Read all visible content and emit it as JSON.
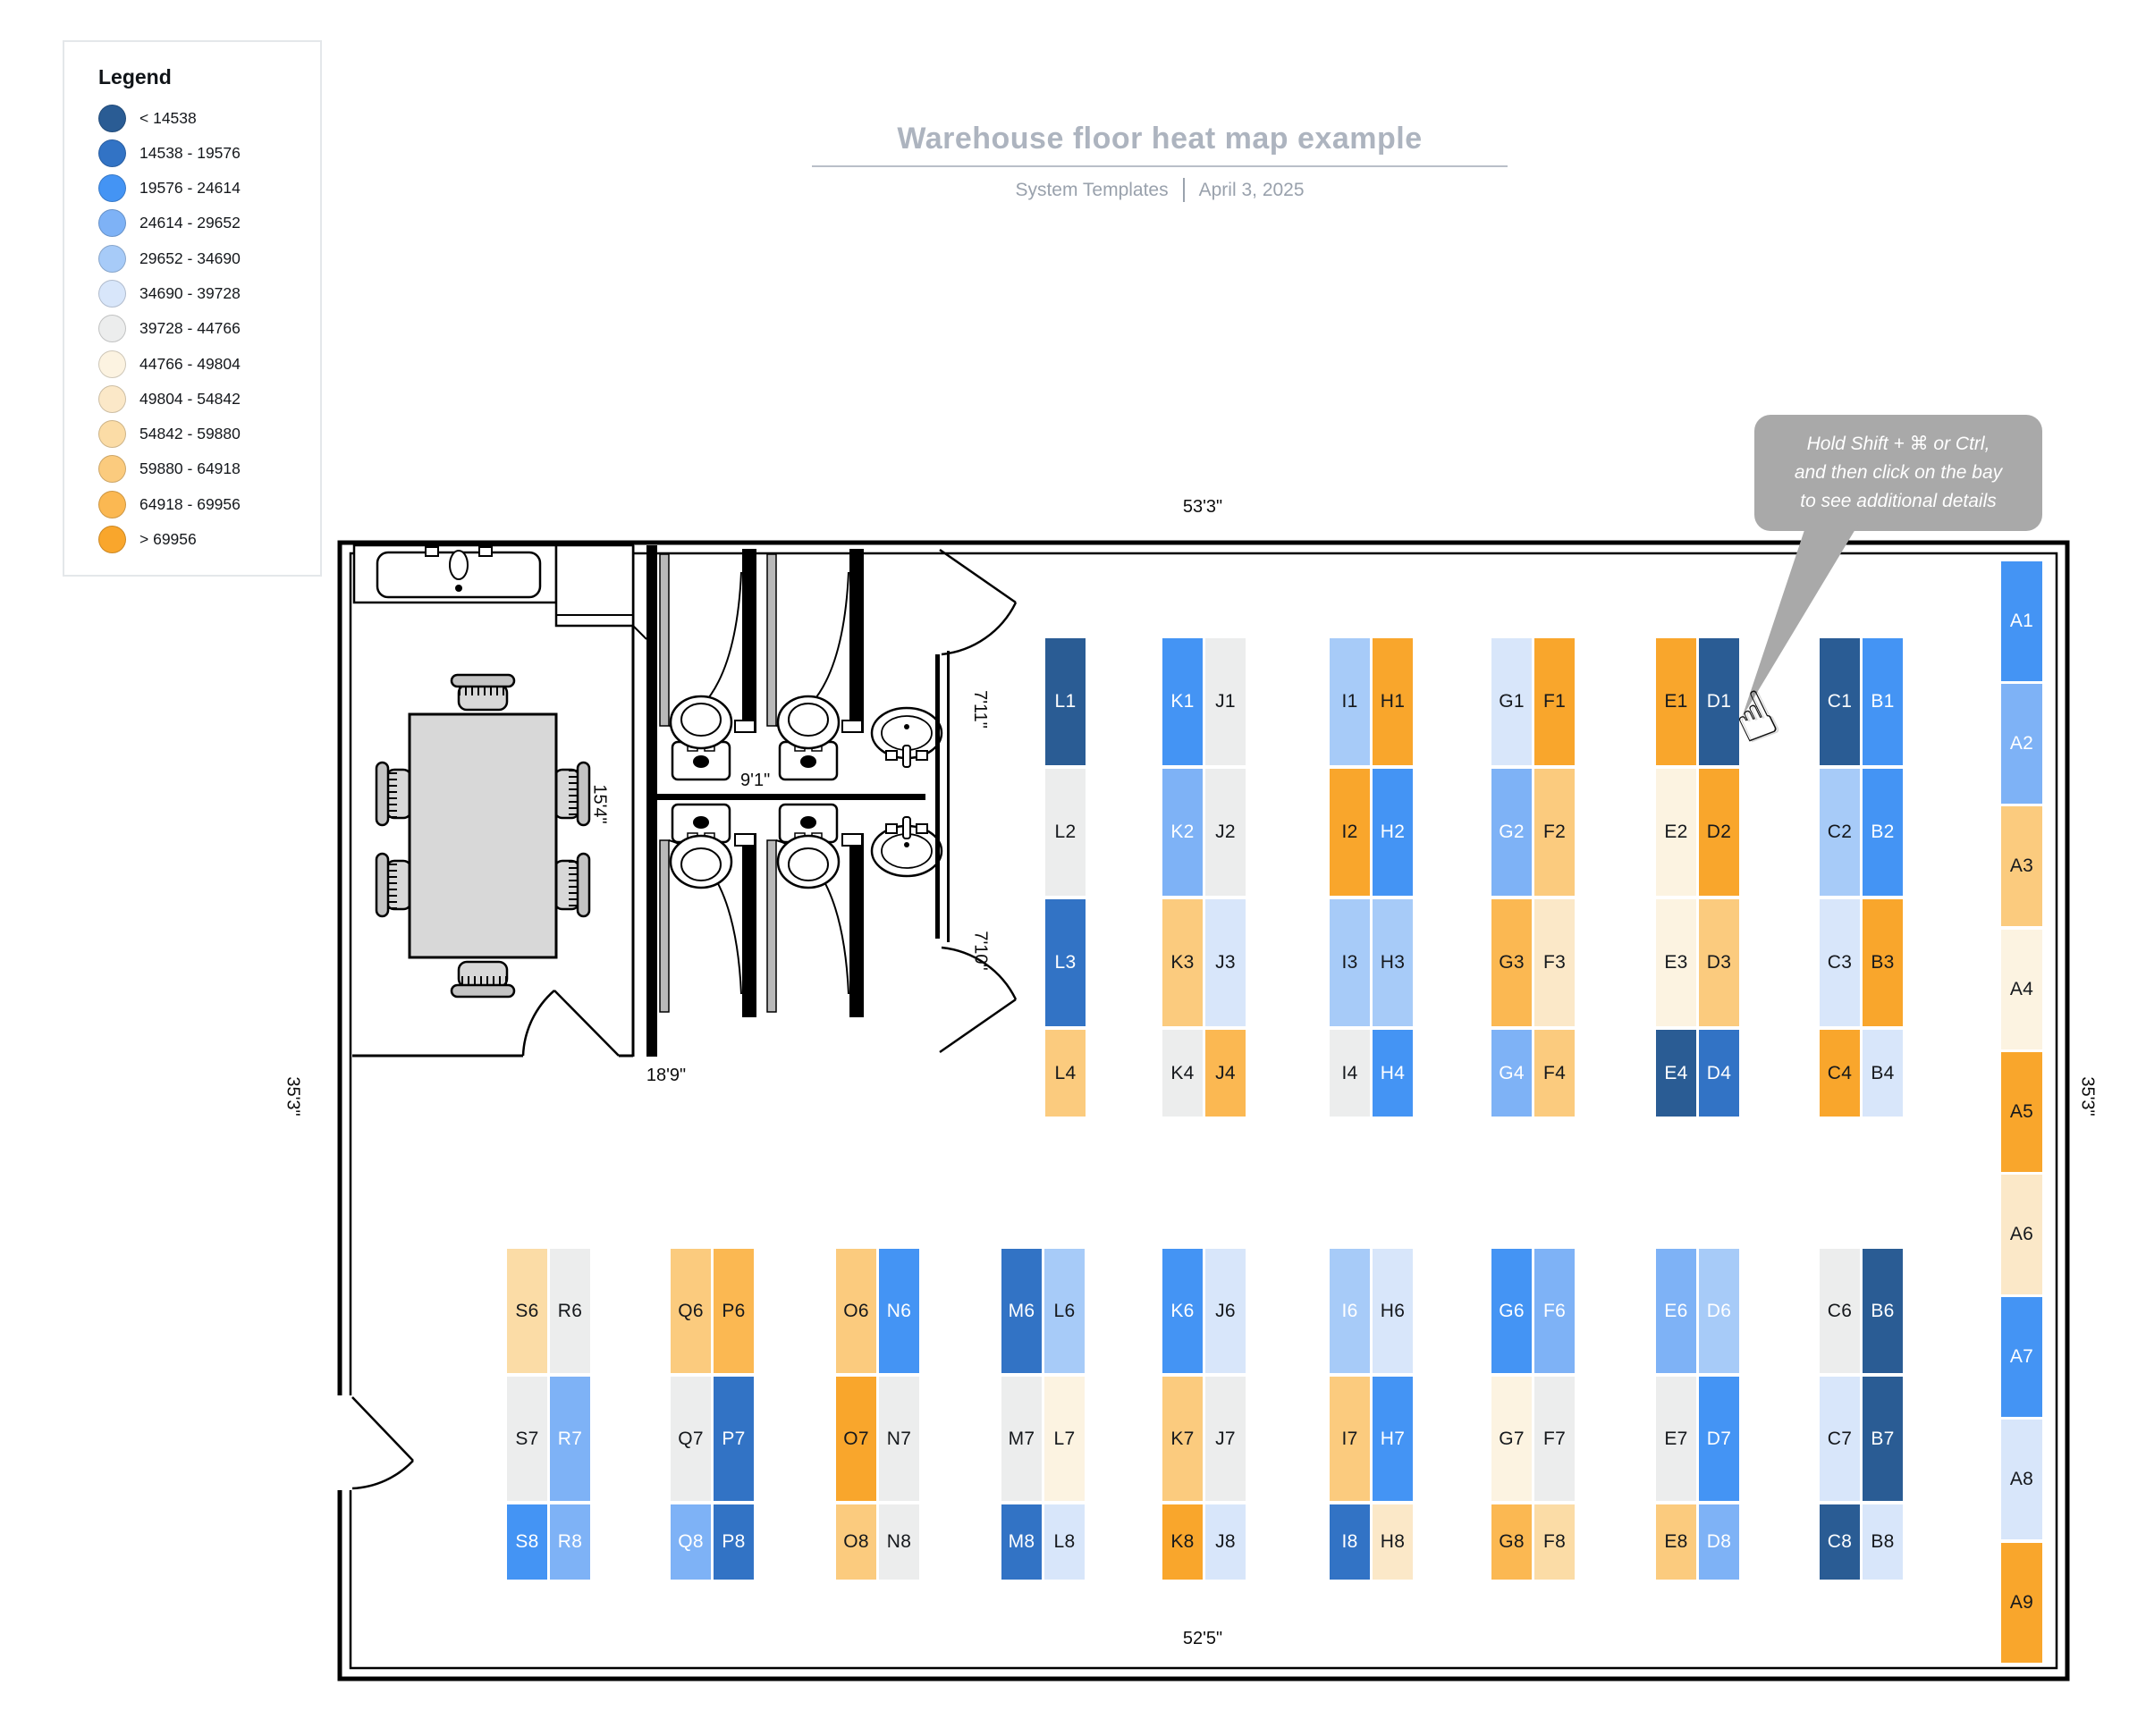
{
  "header": {
    "title": "Warehouse floor heat map example",
    "subtitle_left": "System Templates",
    "subtitle_right": "April 3, 2025"
  },
  "legend": {
    "title": "Legend",
    "items": [
      {
        "label": "< 14538",
        "color": "#2A5C94"
      },
      {
        "label": "14538 - 19576",
        "color": "#3273C5"
      },
      {
        "label": "19576 - 24614",
        "color": "#4494F4"
      },
      {
        "label": "24614 - 29652",
        "color": "#7EB2F6"
      },
      {
        "label": "29652 - 34690",
        "color": "#A7CBF8"
      },
      {
        "label": "34690 - 39728",
        "color": "#D8E6FA"
      },
      {
        "label": "39728 - 44766",
        "color": "#ECEDED"
      },
      {
        "label": "44766 - 49804",
        "color": "#FCF3E1"
      },
      {
        "label": "49804 - 54842",
        "color": "#FBE8C8"
      },
      {
        "label": "54842 - 59880",
        "color": "#FBDCA6"
      },
      {
        "label": "59880 - 64918",
        "color": "#FBCB7E"
      },
      {
        "label": "64918 - 69956",
        "color": "#FBB852"
      },
      {
        "label": "> 69956",
        "color": "#F9A62C"
      }
    ]
  },
  "tooltip": {
    "lines": [
      "Hold Shift + ⌘ or Ctrl,",
      "and then click on the bay",
      "to see additional details"
    ]
  },
  "icons": {
    "hand_cursor": "☝"
  },
  "dimensions": {
    "top": "53'3\"",
    "bottom": "52'5\"",
    "left": "35'3\"",
    "right": "35'3\"",
    "break_room_width": "18'9\"",
    "break_room_depth": "15'4\"",
    "bath_top": "7'11\"",
    "bath_middle": "9'1\"",
    "bath_bottom": "7'10\""
  },
  "bays": {
    "top_racks": [
      {
        "cols": [
          [
            {
              "label": "L1",
              "bin": 0
            },
            {
              "label": "L2",
              "bin": 6
            },
            {
              "label": "L3",
              "bin": 1
            },
            {
              "label": "L4",
              "bin": 10
            }
          ]
        ]
      },
      {
        "cols": [
          [
            {
              "label": "K1",
              "bin": 2
            },
            {
              "label": "K2",
              "bin": 3
            },
            {
              "label": "K3",
              "bin": 10
            },
            {
              "label": "K4",
              "bin": 6
            }
          ],
          [
            {
              "label": "J1",
              "bin": 6
            },
            {
              "label": "J2",
              "bin": 6
            },
            {
              "label": "J3",
              "bin": 5
            },
            {
              "label": "J4",
              "bin": 11
            }
          ]
        ]
      },
      {
        "cols": [
          [
            {
              "label": "I1",
              "bin": 4
            },
            {
              "label": "I2",
              "bin": 12
            },
            {
              "label": "I3",
              "bin": 4
            },
            {
              "label": "I4",
              "bin": 6
            }
          ],
          [
            {
              "label": "H1",
              "bin": 12
            },
            {
              "label": "H2",
              "bin": 2
            },
            {
              "label": "H3",
              "bin": 4
            },
            {
              "label": "H4",
              "bin": 2
            }
          ]
        ]
      },
      {
        "cols": [
          [
            {
              "label": "G1",
              "bin": 5
            },
            {
              "label": "G2",
              "bin": 3
            },
            {
              "label": "G3",
              "bin": 11
            },
            {
              "label": "G4",
              "bin": 3
            }
          ],
          [
            {
              "label": "F1",
              "bin": 12
            },
            {
              "label": "F2",
              "bin": 10
            },
            {
              "label": "F3",
              "bin": 8
            },
            {
              "label": "F4",
              "bin": 10
            }
          ]
        ]
      },
      {
        "cols": [
          [
            {
              "label": "E1",
              "bin": 12
            },
            {
              "label": "E2",
              "bin": 7
            },
            {
              "label": "E3",
              "bin": 7
            },
            {
              "label": "E4",
              "bin": 0
            }
          ],
          [
            {
              "label": "D1",
              "bin": 0
            },
            {
              "label": "D2",
              "bin": 12
            },
            {
              "label": "D3",
              "bin": 10
            },
            {
              "label": "D4",
              "bin": 1
            }
          ]
        ]
      },
      {
        "cols": [
          [
            {
              "label": "C1",
              "bin": 0
            },
            {
              "label": "C2",
              "bin": 4
            },
            {
              "label": "C3",
              "bin": 5
            },
            {
              "label": "C4",
              "bin": 12
            }
          ],
          [
            {
              "label": "B1",
              "bin": 2
            },
            {
              "label": "B2",
              "bin": 2
            },
            {
              "label": "B3",
              "bin": 12
            },
            {
              "label": "B4",
              "bin": 5
            }
          ]
        ]
      }
    ],
    "bottom_racks": [
      {
        "cols": [
          [
            {
              "label": "S6",
              "bin": 9
            },
            {
              "label": "S7",
              "bin": 6
            },
            {
              "label": "S8",
              "bin": 2
            }
          ],
          [
            {
              "label": "R6",
              "bin": 6
            },
            {
              "label": "R7",
              "bin": 3
            },
            {
              "label": "R8",
              "bin": 3
            }
          ]
        ]
      },
      {
        "cols": [
          [
            {
              "label": "Q6",
              "bin": 10
            },
            {
              "label": "Q7",
              "bin": 6
            },
            {
              "label": "Q8",
              "bin": 3
            }
          ],
          [
            {
              "label": "P6",
              "bin": 11
            },
            {
              "label": "P7",
              "bin": 1
            },
            {
              "label": "P8",
              "bin": 1
            }
          ]
        ]
      },
      {
        "cols": [
          [
            {
              "label": "O6",
              "bin": 10
            },
            {
              "label": "O7",
              "bin": 12
            },
            {
              "label": "O8",
              "bin": 10
            }
          ],
          [
            {
              "label": "N6",
              "bin": 2
            },
            {
              "label": "N7",
              "bin": 6
            },
            {
              "label": "N8",
              "bin": 6
            }
          ]
        ]
      },
      {
        "cols": [
          [
            {
              "label": "M6",
              "bin": 1
            },
            {
              "label": "M7",
              "bin": 6
            },
            {
              "label": "M8",
              "bin": 1
            }
          ],
          [
            {
              "label": "L6",
              "bin": 4
            },
            {
              "label": "L7",
              "bin": 7
            },
            {
              "label": "L8",
              "bin": 5
            }
          ]
        ]
      },
      {
        "cols": [
          [
            {
              "label": "K6",
              "bin": 2
            },
            {
              "label": "K7",
              "bin": 10
            },
            {
              "label": "K8",
              "bin": 12
            }
          ],
          [
            {
              "label": "J6",
              "bin": 5
            },
            {
              "label": "J7",
              "bin": 6
            },
            {
              "label": "J8",
              "bin": 5
            }
          ]
        ]
      },
      {
        "cols": [
          [
            {
              "label": "I6",
              "bin": 4,
              "light": true
            },
            {
              "label": "I7",
              "bin": 10
            },
            {
              "label": "I8",
              "bin": 1
            }
          ],
          [
            {
              "label": "H6",
              "bin": 5
            },
            {
              "label": "H7",
              "bin": 2
            },
            {
              "label": "H8",
              "bin": 8
            }
          ]
        ]
      },
      {
        "cols": [
          [
            {
              "label": "G6",
              "bin": 2
            },
            {
              "label": "G7",
              "bin": 7
            },
            {
              "label": "G8",
              "bin": 11
            }
          ],
          [
            {
              "label": "F6",
              "bin": 3
            },
            {
              "label": "F7",
              "bin": 6
            },
            {
              "label": "F8",
              "bin": 9
            }
          ]
        ]
      },
      {
        "cols": [
          [
            {
              "label": "E6",
              "bin": 3
            },
            {
              "label": "E7",
              "bin": 6
            },
            {
              "label": "E8",
              "bin": 10
            }
          ],
          [
            {
              "label": "D6",
              "bin": 4,
              "light": true
            },
            {
              "label": "D7",
              "bin": 2
            },
            {
              "label": "D8",
              "bin": 3
            }
          ]
        ]
      },
      {
        "cols": [
          [
            {
              "label": "C6",
              "bin": 6
            },
            {
              "label": "C7",
              "bin": 5
            },
            {
              "label": "C8",
              "bin": 0
            }
          ],
          [
            {
              "label": "B6",
              "bin": 0
            },
            {
              "label": "B7",
              "bin": 0
            },
            {
              "label": "B8",
              "bin": 5
            }
          ]
        ]
      }
    ],
    "right_rack": [
      {
        "label": "A1",
        "bin": 2
      },
      {
        "label": "A2",
        "bin": 3
      },
      {
        "label": "A3",
        "bin": 10
      },
      {
        "label": "A4",
        "bin": 7
      },
      {
        "label": "A5",
        "bin": 12
      },
      {
        "label": "A6",
        "bin": 8
      },
      {
        "label": "A7",
        "bin": 2
      },
      {
        "label": "A8",
        "bin": 5
      },
      {
        "label": "A9",
        "bin": 12
      }
    ]
  }
}
